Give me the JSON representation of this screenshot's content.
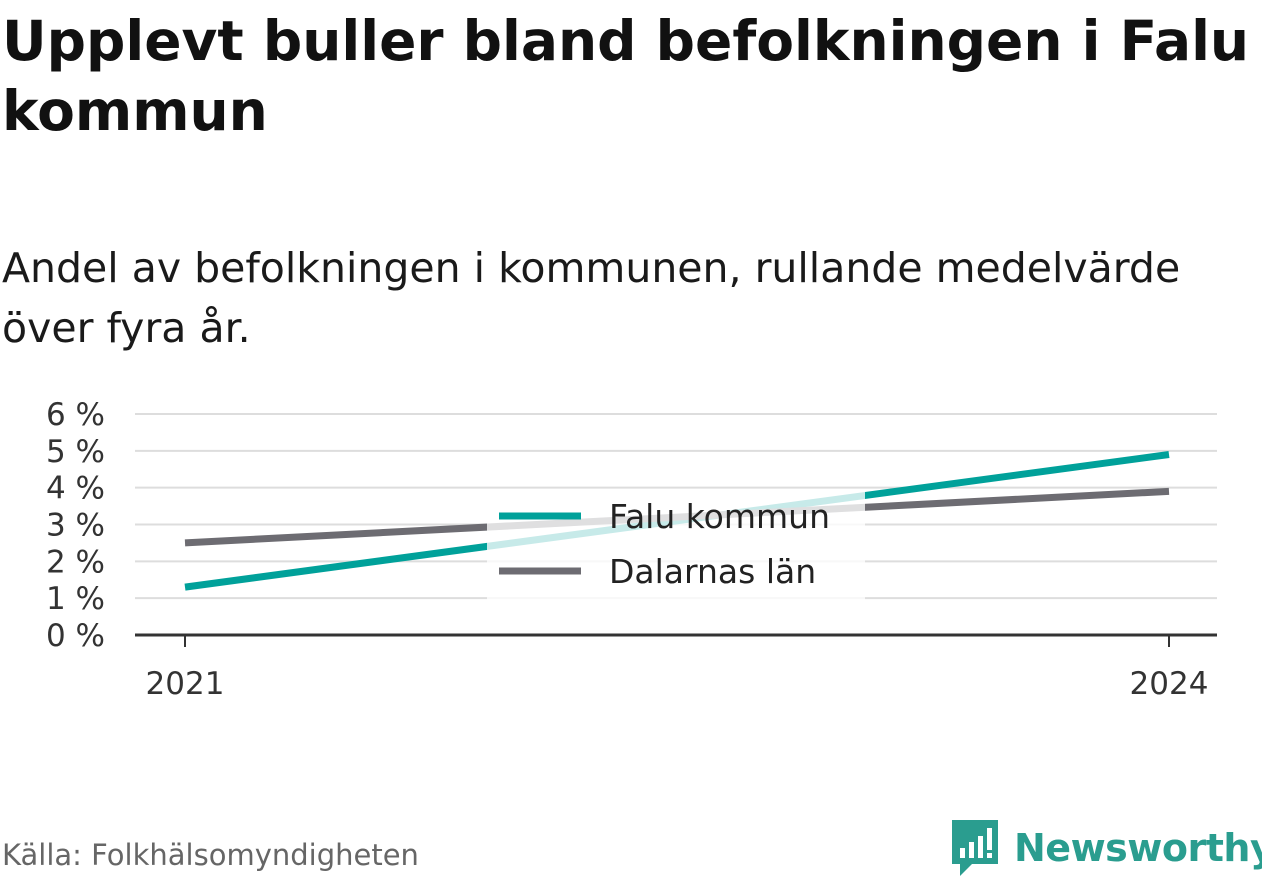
{
  "title": "Upplevt buller bland befolkningen i Falu kommun",
  "subtitle": "Andel av befolkningen i kommunen, rullande medelvärde över fyra år.",
  "source": "Källa: Folkhälsomyndigheten",
  "brand": {
    "name": "Newsworthy",
    "icon": "newsworthy-logo-icon",
    "color": "#2a9d8f"
  },
  "chart_data": {
    "type": "line",
    "x": [
      2021,
      2024
    ],
    "series": [
      {
        "name": "Falu kommun",
        "values": [
          1.3,
          4.9
        ],
        "color": "#00a19a"
      },
      {
        "name": "Dalarnas län",
        "values": [
          2.5,
          3.9
        ],
        "color": "#6d6c72"
      }
    ],
    "ylim": [
      0,
      6
    ],
    "yticks": [
      "0 %",
      "1 %",
      "2 %",
      "3 %",
      "4 %",
      "5 %",
      "6 %"
    ],
    "xticks": [
      "2021",
      "2024"
    ],
    "xlabel": "",
    "ylabel": "",
    "grid": true,
    "legend": "center"
  }
}
